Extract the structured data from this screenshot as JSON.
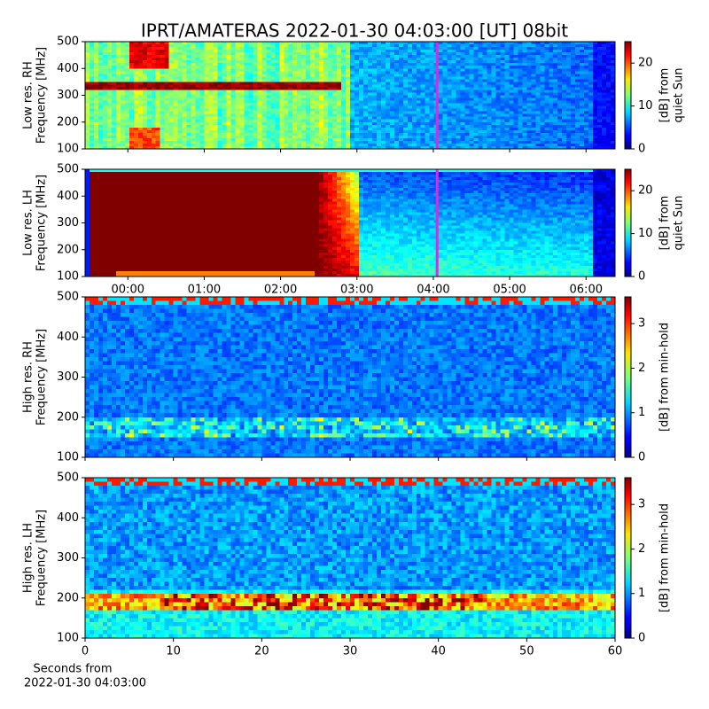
{
  "title": "IPRT/AMATERAS 2022-01-30 04:03:00 [UT]   08bit",
  "chart_data": [
    {
      "type": "heatmap",
      "ylabel": [
        "Low res. RH",
        "Frequency [MHz]"
      ],
      "ylim": [
        100,
        500
      ],
      "yticks": [
        100,
        200,
        300,
        400,
        500
      ],
      "xlim": [
        -0.56,
        6.38
      ],
      "xtick_labels": false,
      "xticks": [
        {
          "value": 0,
          "label": "00:00"
        },
        {
          "value": 1,
          "label": "01:00"
        },
        {
          "value": 2,
          "label": "02:00"
        },
        {
          "value": 3,
          "label": "03:00"
        },
        {
          "value": 4,
          "label": "04:00"
        },
        {
          "value": 5,
          "label": "05:00"
        },
        {
          "value": 6,
          "label": "06:00"
        }
      ],
      "vline": {
        "value": 4.05,
        "color": "#cc33dd"
      },
      "colormap": "jet",
      "colorbar": {
        "label": [
          "[dB] from",
          "quiet Sun"
        ],
        "lim": [
          0,
          25
        ],
        "ticks": [
          0,
          10,
          20
        ]
      }
    },
    {
      "type": "heatmap",
      "ylabel": [
        "Low res. LH",
        "Frequency [MHz]"
      ],
      "ylim": [
        100,
        500
      ],
      "yticks": [
        100,
        200,
        300,
        400,
        500
      ],
      "xlim": [
        -0.56,
        6.38
      ],
      "xtick_labels": true,
      "xticks": [
        {
          "value": 0,
          "label": "00:00"
        },
        {
          "value": 1,
          "label": "01:00"
        },
        {
          "value": 2,
          "label": "02:00"
        },
        {
          "value": 3,
          "label": "03:00"
        },
        {
          "value": 4,
          "label": "04:00"
        },
        {
          "value": 5,
          "label": "05:00"
        },
        {
          "value": 6,
          "label": "06:00"
        }
      ],
      "vline": {
        "value": 4.05,
        "color": "#cc33dd"
      },
      "colormap": "jet",
      "colorbar": {
        "label": [
          "[dB] from",
          "quiet Sun"
        ],
        "lim": [
          0,
          25
        ],
        "ticks": [
          0,
          10,
          20
        ]
      }
    },
    {
      "type": "heatmap",
      "ylabel": [
        "High res. RH",
        "Frequency [MHz]"
      ],
      "ylim": [
        100,
        500
      ],
      "yticks": [
        100,
        200,
        300,
        400,
        500
      ],
      "xlim": [
        0,
        60
      ],
      "xtick_labels": false,
      "xticks": [
        0,
        10,
        20,
        30,
        40,
        50,
        60
      ],
      "colormap": "jet",
      "colorbar": {
        "label": [
          "[dB] from min-hold"
        ],
        "lim": [
          0,
          3.6
        ],
        "ticks": [
          0,
          1,
          2,
          3
        ]
      }
    },
    {
      "type": "heatmap",
      "ylabel": [
        "High res. LH",
        "Frequency [MHz]"
      ],
      "ylim": [
        100,
        500
      ],
      "yticks": [
        100,
        200,
        300,
        400,
        500
      ],
      "xlim": [
        0,
        60
      ],
      "xtick_labels": true,
      "xticks": [
        0,
        10,
        20,
        30,
        40,
        50,
        60
      ],
      "xlabel": [
        "Seconds from",
        "2022-01-30 04:03:00"
      ],
      "colormap": "jet",
      "colorbar": {
        "label": [
          "[dB] from min-hold"
        ],
        "lim": [
          0,
          3.6
        ],
        "ticks": [
          0,
          1,
          2,
          3
        ]
      }
    }
  ]
}
